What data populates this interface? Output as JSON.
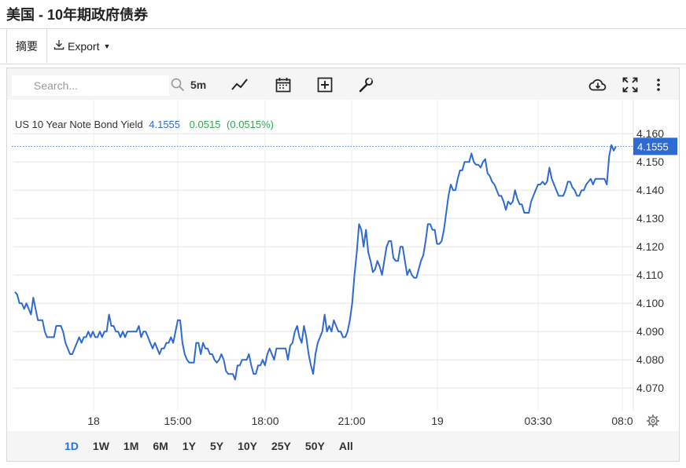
{
  "page_title": "美国 - 10年期政府债券",
  "tabs": {
    "summary": "摘要",
    "export": "Export"
  },
  "toolbar": {
    "search_placeholder": "Search...",
    "interval": "5m"
  },
  "legend": {
    "name": "US 10 Year Note Bond Yield",
    "last": "4.1555",
    "change": "0.0515",
    "change_pct": "(0.0515%)"
  },
  "price_label": "4.1555",
  "range_buttons": [
    "1D",
    "1W",
    "1M",
    "6M",
    "1Y",
    "5Y",
    "10Y",
    "25Y",
    "50Y",
    "All"
  ],
  "active_range": "1D",
  "colors": {
    "line": "#2f6ad0",
    "accent": "#2a6ee8",
    "positive": "#2fa84f",
    "grid": "#e6e6e6"
  },
  "chart_data": {
    "type": "line",
    "y_ticks": [
      "4.160",
      "4.150",
      "4.140",
      "4.130",
      "4.120",
      "4.110",
      "4.100",
      "4.090",
      "4.080",
      "4.070"
    ],
    "x_ticks": [
      "18",
      "15:00",
      "18:00",
      "21:00",
      "19",
      "03:30",
      "08:0"
    ],
    "ylim": [
      4.062,
      4.172
    ],
    "series": [
      {
        "name": "US 10 Year Note Bond Yield",
        "values": [
          4.104,
          4.103,
          4.1,
          4.1,
          4.098,
          4.1,
          4.098,
          4.096,
          4.102,
          4.098,
          4.094,
          4.094,
          4.094,
          4.09,
          4.088,
          4.088,
          4.088,
          4.088,
          4.092,
          4.092,
          4.092,
          4.09,
          4.086,
          4.084,
          4.082,
          4.082,
          4.084,
          4.086,
          4.088,
          4.086,
          4.088,
          4.088,
          4.09,
          4.088,
          4.09,
          4.088,
          4.088,
          4.09,
          4.088,
          4.09,
          4.09,
          4.096,
          4.092,
          4.092,
          4.09,
          4.09,
          4.088,
          4.09,
          4.088,
          4.09,
          4.09,
          4.09,
          4.09,
          4.09,
          4.092,
          4.088,
          4.09,
          4.09,
          4.088,
          4.086,
          4.084,
          4.086,
          4.084,
          4.082,
          4.084,
          4.084,
          4.086,
          4.086,
          4.088,
          4.086,
          4.09,
          4.094,
          4.094,
          4.086,
          4.082,
          4.08,
          4.079,
          4.079,
          4.079,
          4.086,
          4.086,
          4.082,
          4.086,
          4.084,
          4.084,
          4.082,
          4.082,
          4.08,
          4.079,
          4.08,
          4.082,
          4.08,
          4.076,
          4.075,
          4.075,
          4.075,
          4.073,
          4.078,
          4.078,
          4.08,
          4.08,
          4.08,
          4.082,
          4.078,
          4.075,
          4.075,
          4.078,
          4.078,
          4.08,
          4.078,
          4.082,
          4.084,
          4.082,
          4.08,
          4.084,
          4.084,
          4.084,
          4.084,
          4.084,
          4.08,
          4.085,
          4.086,
          4.09,
          4.092,
          4.088,
          4.086,
          4.092,
          4.088,
          4.082,
          4.078,
          4.075,
          4.082,
          4.086,
          4.088,
          4.09,
          4.096,
          4.09,
          4.092,
          4.09,
          4.094,
          4.092,
          4.09,
          4.09,
          4.088,
          4.088,
          4.09,
          4.094,
          4.1,
          4.11,
          4.118,
          4.128,
          4.126,
          4.12,
          4.126,
          4.118,
          4.115,
          4.111,
          4.112,
          4.115,
          4.113,
          4.11,
          4.115,
          4.12,
          4.122,
          4.122,
          4.116,
          4.115,
          4.115,
          4.12,
          4.12,
          4.115,
          4.11,
          4.112,
          4.11,
          4.109,
          4.109,
          4.112,
          4.115,
          4.117,
          4.122,
          4.128,
          4.128,
          4.126,
          4.126,
          4.121,
          4.121,
          4.122,
          4.126,
          4.132,
          4.138,
          4.142,
          4.14,
          4.14,
          4.144,
          4.147,
          4.147,
          4.15,
          4.15,
          4.15,
          4.153,
          4.15,
          4.149,
          4.149,
          4.148,
          4.15,
          4.151,
          4.146,
          4.145,
          4.143,
          4.142,
          4.14,
          4.138,
          4.138,
          4.136,
          4.133,
          4.136,
          4.135,
          4.136,
          4.14,
          4.137,
          4.135,
          4.135,
          4.132,
          4.132,
          4.132,
          4.136,
          4.138,
          4.14,
          4.142,
          4.142,
          4.143,
          4.142,
          4.143,
          4.148,
          4.144,
          4.142,
          4.14,
          4.138,
          4.138,
          4.138,
          4.14,
          4.143,
          4.143,
          4.141,
          4.14,
          4.138,
          4.138,
          4.14,
          4.14,
          4.142,
          4.143,
          4.144,
          4.142,
          4.144,
          4.144,
          4.144,
          4.144,
          4.144,
          4.142,
          4.152,
          4.156,
          4.154,
          4.1555
        ]
      }
    ]
  }
}
